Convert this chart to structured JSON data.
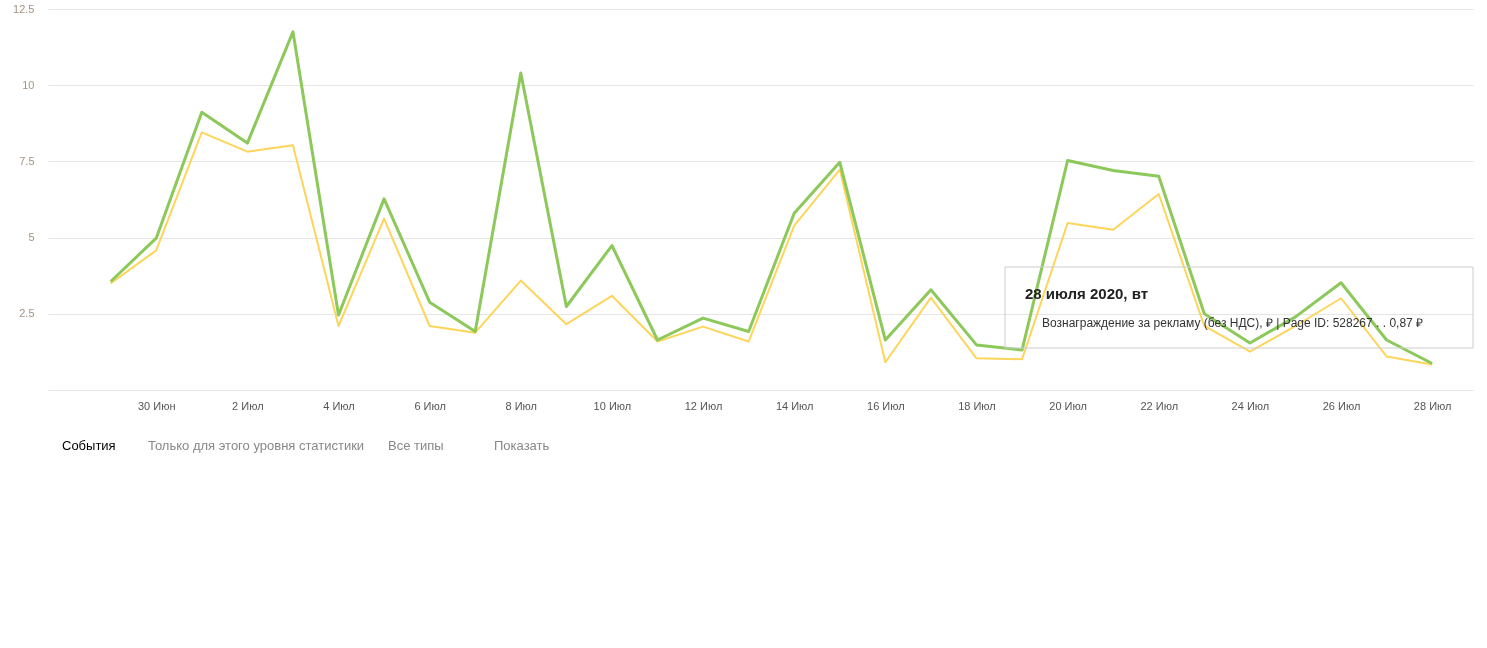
{
  "chart_data": {
    "type": "line",
    "x": [
      "2020-06-29",
      "2020-06-30",
      "2020-07-01",
      "2020-07-02",
      "2020-07-03",
      "2020-07-04",
      "2020-07-05",
      "2020-07-06",
      "2020-07-07",
      "2020-07-08",
      "2020-07-09",
      "2020-07-10",
      "2020-07-11",
      "2020-07-12",
      "2020-07-13",
      "2020-07-14",
      "2020-07-15",
      "2020-07-16",
      "2020-07-17",
      "2020-07-18",
      "2020-07-19",
      "2020-07-20",
      "2020-07-21",
      "2020-07-22",
      "2020-07-23",
      "2020-07-24",
      "2020-07-25",
      "2020-07-26",
      "2020-07-27",
      "2020-07-28"
    ],
    "series": [
      {
        "color": "#fdd55a",
        "values": [
          3.5,
          4.58,
          8.45,
          7.82,
          8.03,
          2.1,
          5.62,
          2.1,
          1.88,
          3.59,
          2.16,
          3.09,
          1.59,
          2.08,
          1.59,
          5.39,
          7.23,
          0.91,
          3.03,
          1.04,
          1.01,
          5.48,
          5.26,
          6.43,
          2.1,
          1.26,
          2.1,
          3.01,
          1.1,
          0.84
        ]
      },
      {
        "color": "#8cc85a",
        "values": [
          3.56,
          4.98,
          9.11,
          8.1,
          11.75,
          2.46,
          6.27,
          2.88,
          1.92,
          10.4,
          2.74,
          4.74,
          1.64,
          2.36,
          1.92,
          5.8,
          7.47,
          1.64,
          3.29,
          1.48,
          1.31,
          7.53,
          7.2,
          7.01,
          2.5,
          1.54,
          2.4,
          3.52,
          1.64,
          0.87
        ]
      }
    ],
    "xlim": [
      "2020-06-27T15:00",
      "2020-07-28T21:30"
    ],
    "xticks": [
      {
        "value": "2020-06-30",
        "label": "30 Июн"
      },
      {
        "value": "2020-07-02",
        "label": "2 Июл"
      },
      {
        "value": "2020-07-04",
        "label": "4 Июл"
      },
      {
        "value": "2020-07-06",
        "label": "6 Июл"
      },
      {
        "value": "2020-07-08",
        "label": "8 Июл"
      },
      {
        "value": "2020-07-10",
        "label": "10 Июл"
      },
      {
        "value": "2020-07-12",
        "label": "12 Июл"
      },
      {
        "value": "2020-07-14",
        "label": "14 Июл"
      },
      {
        "value": "2020-07-16",
        "label": "16 Июл"
      },
      {
        "value": "2020-07-18",
        "label": "18 Июл"
      },
      {
        "value": "2020-07-20",
        "label": "20 Июл"
      },
      {
        "value": "2020-07-22",
        "label": "22 Июл"
      },
      {
        "value": "2020-07-24",
        "label": "24 Июл"
      },
      {
        "value": "2020-07-26",
        "label": "26 Июл"
      },
      {
        "value": "2020-07-28",
        "label": "28 Июл"
      }
    ],
    "ylim": [
      0,
      12.5
    ],
    "yticks": [
      {
        "value": 0,
        "label": null
      },
      2.5,
      5,
      7.5,
      10,
      12.5
    ],
    "grid": "y",
    "legend": false,
    "marker": "none",
    "line_style": "solid",
    "annotations": [
      "28 июля 2020, вт",
      "Вознаграждение за рекламу (без НДС), ₽ | Page ID: 528267 . . 0,87 ₽",
      "События",
      "Только для этого уровня статистики",
      "Все типы",
      "Показать"
    ]
  }
}
